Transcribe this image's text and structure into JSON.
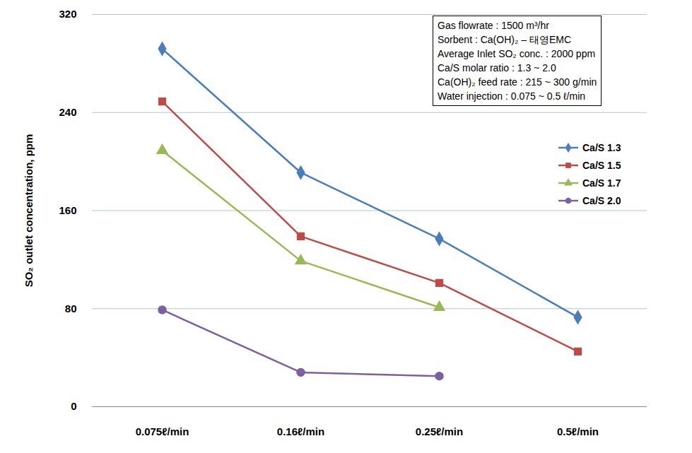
{
  "chart_data": {
    "type": "line",
    "y_label": "SO₂ outlet concentration, ppm",
    "categories": [
      "0.075ℓ/min",
      "0.16ℓ/min",
      "0.25ℓ/min",
      "0.5ℓ/min"
    ],
    "series": [
      {
        "name": "Ca/S 1.3",
        "color": "#4a7ebb",
        "marker": "diamond",
        "values": [
          292,
          191,
          137,
          73
        ]
      },
      {
        "name": "Ca/S 1.5",
        "color": "#be4b48",
        "marker": "square",
        "values": [
          249,
          139,
          101,
          45
        ]
      },
      {
        "name": "Ca/S 1.7",
        "color": "#98b954",
        "marker": "triangle",
        "values": [
          209,
          119,
          81,
          null
        ]
      },
      {
        "name": "Ca/S 2.0",
        "color": "#7d60a0",
        "marker": "circle",
        "values": [
          79,
          28,
          25,
          null
        ]
      }
    ],
    "ylim": [
      0,
      320
    ],
    "yticks": [
      0,
      80,
      160,
      240,
      320
    ],
    "grid": true,
    "legend": "right",
    "annotations": [
      "Gas flowrate : 1500 m³/hr",
      "Sorbent : Ca(OH)₂ – 태영EMC",
      "Average Inlet SO₂ conc. : 2000 ppm",
      "Ca/S molar ratio : 1.3 ~ 2.0",
      "Ca(OH)₂ feed rate : 215 ~ 300 g/min",
      "Water injection : 0.075 ~ 0.5 ℓ/min"
    ]
  }
}
